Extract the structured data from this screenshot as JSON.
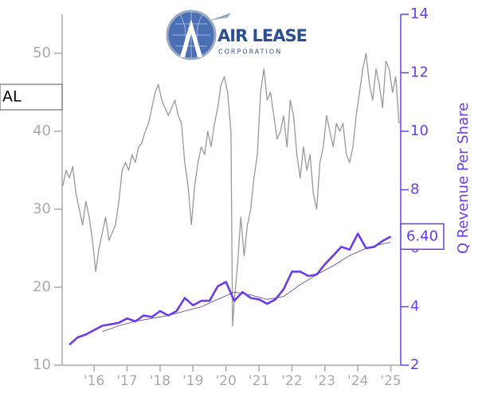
{
  "chart_data": {
    "type": "line",
    "logo": {
      "name": "AIR LEASE",
      "subtitle": "CORPORATION"
    },
    "ticker_label": "AL",
    "y2label": "Q Revenue Per Share",
    "xlim": [
      2015.03,
      2025.3
    ],
    "xticks": [
      {
        "value": 2016,
        "label": "'16"
      },
      {
        "value": 2017,
        "label": "'17"
      },
      {
        "value": 2018,
        "label": "'18"
      },
      {
        "value": 2019,
        "label": "'19"
      },
      {
        "value": 2020,
        "label": "'20"
      },
      {
        "value": 2021,
        "label": "'21"
      },
      {
        "value": 2022,
        "label": "'22"
      },
      {
        "value": 2023,
        "label": "'23"
      },
      {
        "value": 2024,
        "label": "'24"
      },
      {
        "value": 2025,
        "label": "'25"
      }
    ],
    "ylim": [
      10,
      55
    ],
    "yticks": [
      10,
      20,
      30,
      40,
      50
    ],
    "y2lim": [
      2,
      14
    ],
    "y2ticks": [
      2,
      4,
      6,
      8,
      10,
      12,
      14
    ],
    "series": [
      {
        "color": "#999999",
        "axis": "y",
        "width": 1.3,
        "x": [
          2015.05,
          2015.15,
          2015.25,
          2015.35,
          2015.45,
          2015.55,
          2015.65,
          2015.75,
          2015.85,
          2015.95,
          2016.05,
          2016.15,
          2016.25,
          2016.35,
          2016.45,
          2016.55,
          2016.65,
          2016.75,
          2016.85,
          2016.95,
          2017.05,
          2017.15,
          2017.25,
          2017.35,
          2017.45,
          2017.55,
          2017.65,
          2017.75,
          2017.85,
          2017.95,
          2018.05,
          2018.15,
          2018.25,
          2018.35,
          2018.45,
          2018.55,
          2018.65,
          2018.75,
          2018.85,
          2018.95,
          2019.05,
          2019.15,
          2019.25,
          2019.35,
          2019.45,
          2019.55,
          2019.65,
          2019.75,
          2019.85,
          2019.95,
          2020.05,
          2020.15,
          2020.2,
          2020.25,
          2020.35,
          2020.45,
          2020.55,
          2020.65,
          2020.75,
          2020.85,
          2020.95,
          2021.05,
          2021.15,
          2021.25,
          2021.35,
          2021.45,
          2021.55,
          2021.65,
          2021.75,
          2021.85,
          2021.95,
          2022.05,
          2022.15,
          2022.25,
          2022.35,
          2022.45,
          2022.55,
          2022.65,
          2022.75,
          2022.85,
          2022.95,
          2023.05,
          2023.15,
          2023.25,
          2023.35,
          2023.45,
          2023.55,
          2023.65,
          2023.75,
          2023.85,
          2023.95,
          2024.05,
          2024.15,
          2024.25,
          2024.35,
          2024.45,
          2024.55,
          2024.65,
          2024.75,
          2024.85,
          2024.95,
          2025.05,
          2025.15,
          2025.25
        ],
        "values": [
          33,
          35,
          34,
          35.5,
          32,
          30,
          28,
          31,
          29,
          26,
          22,
          25,
          27,
          29,
          26,
          27,
          28,
          31,
          35,
          36,
          35,
          37,
          36,
          38,
          38.5,
          40,
          41,
          43,
          45,
          46,
          44,
          43,
          42,
          43,
          44,
          42,
          41,
          36,
          33,
          28,
          33,
          36,
          38,
          37,
          40,
          38,
          41,
          43,
          46,
          47,
          45,
          40,
          15,
          18,
          23,
          29,
          24,
          28,
          30,
          34,
          37,
          45,
          48,
          44,
          45,
          42,
          39,
          40,
          42,
          38,
          44,
          42,
          37,
          34,
          38,
          35,
          37,
          32,
          30,
          36,
          38,
          42,
          40,
          38,
          41,
          40,
          41,
          37,
          36,
          38,
          42,
          45,
          48,
          50,
          46,
          44,
          48,
          46,
          43,
          49,
          48,
          45,
          47,
          41
        ]
      },
      {
        "color": "#5a3a9a",
        "axis": "y2",
        "width": 0.8,
        "x": [
          2016.25,
          2016.75,
          2017.25,
          2017.75,
          2018.25,
          2018.75,
          2019.25,
          2019.75,
          2020.25,
          2020.75,
          2021.25,
          2021.75,
          2022.25,
          2022.75,
          2023.25,
          2023.75,
          2024.25,
          2024.75,
          2025.0
        ],
        "values": [
          3.15,
          3.35,
          3.5,
          3.6,
          3.7,
          3.85,
          4.0,
          4.25,
          4.5,
          4.4,
          4.25,
          4.35,
          4.75,
          5.1,
          5.4,
          5.75,
          6.0,
          6.15,
          6.2
        ]
      },
      {
        "color": "#6a3de8",
        "axis": "y2",
        "width": 2.6,
        "x": [
          2015.25,
          2015.5,
          2015.75,
          2016.0,
          2016.25,
          2016.5,
          2016.75,
          2017.0,
          2017.25,
          2017.5,
          2017.75,
          2018.0,
          2018.25,
          2018.5,
          2018.75,
          2019.0,
          2019.25,
          2019.5,
          2019.75,
          2020.0,
          2020.25,
          2020.5,
          2020.75,
          2021.0,
          2021.25,
          2021.5,
          2021.75,
          2022.0,
          2022.25,
          2022.5,
          2022.75,
          2023.0,
          2023.25,
          2023.5,
          2023.75,
          2024.0,
          2024.25,
          2024.5,
          2024.75,
          2025.0
        ],
        "values": [
          2.7,
          2.95,
          3.05,
          3.2,
          3.35,
          3.4,
          3.45,
          3.6,
          3.5,
          3.7,
          3.65,
          3.85,
          3.7,
          3.85,
          4.3,
          4.05,
          4.2,
          4.2,
          4.7,
          4.85,
          4.2,
          4.5,
          4.3,
          4.25,
          4.1,
          4.25,
          4.6,
          5.2,
          5.2,
          5.05,
          5.1,
          5.45,
          5.75,
          6.05,
          5.95,
          6.5,
          6.0,
          6.05,
          6.25,
          6.4
        ],
        "value_labels": [
          null,
          null,
          null,
          null,
          null,
          null,
          null,
          null,
          null,
          null,
          null,
          null,
          null,
          null,
          null,
          null,
          null,
          null,
          null,
          null,
          null,
          null,
          null,
          null,
          null,
          null,
          null,
          null,
          null,
          null,
          null,
          null,
          null,
          null,
          null,
          null,
          null,
          null,
          null,
          "6.40"
        ]
      }
    ]
  }
}
